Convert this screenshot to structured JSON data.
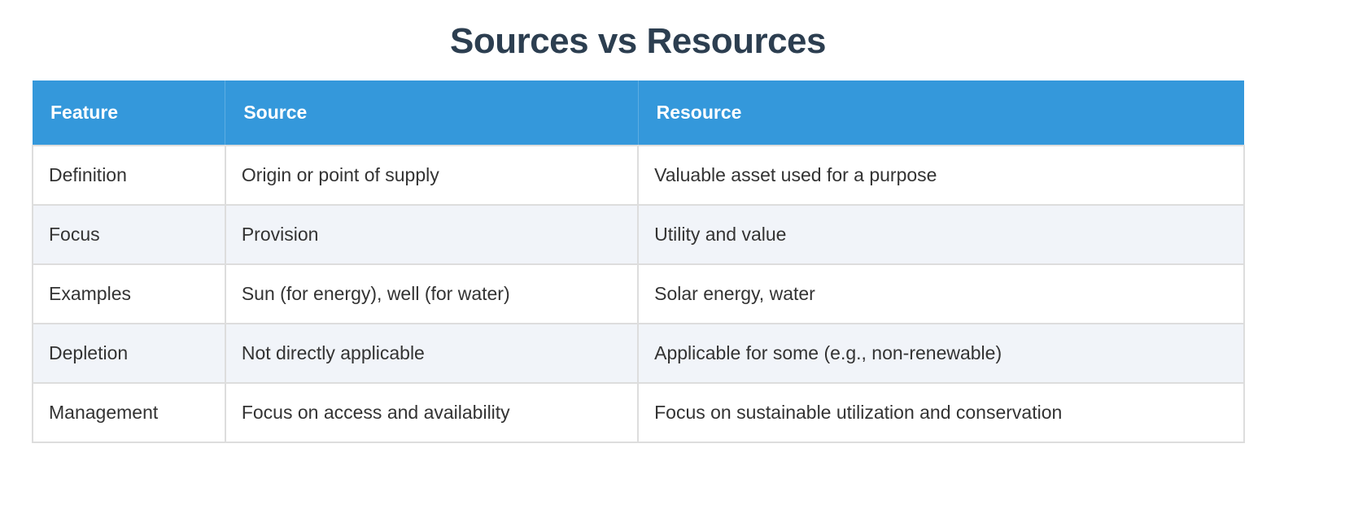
{
  "page": {
    "title": "Sources vs Resources"
  },
  "table": {
    "headers": [
      "Feature",
      "Source",
      "Resource"
    ],
    "rows": [
      [
        "Definition",
        "Origin or point of supply",
        "Valuable asset used for a purpose"
      ],
      [
        "Focus",
        "Provision",
        "Utility and value"
      ],
      [
        "Examples",
        "Sun (for energy), well (for water)",
        "Solar energy, water"
      ],
      [
        "Depletion",
        "Not directly applicable",
        "Applicable for some (e.g., non-renewable)"
      ],
      [
        "Management",
        "Focus on access and availability",
        "Focus on sustainable utilization and conservation"
      ]
    ]
  },
  "colors": {
    "title": "#2c3e50",
    "header_bg": "#3498db",
    "header_text": "#ffffff",
    "row_alt_bg": "#f1f4f9",
    "border": "#dddddd",
    "cell_text": "#333333"
  }
}
